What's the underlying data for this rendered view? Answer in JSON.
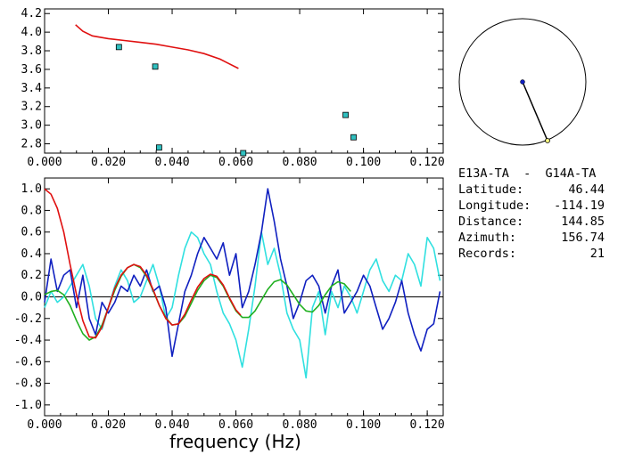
{
  "colors": {
    "red": "#e01010",
    "blue": "#1020c0",
    "cyan": "#30e0e0",
    "green": "#20b020",
    "marker_fill": "#30c0c0",
    "axis": "#000000"
  },
  "info": {
    "station_pair": "E13A-TA  -  G14A-TA",
    "rows": [
      {
        "label": "Latitude:",
        "value": "46.44"
      },
      {
        "label": "Longitude:",
        "value": "-114.19"
      },
      {
        "label": "Distance:",
        "value": "144.85"
      },
      {
        "label": "Azimuth:",
        "value": "156.74"
      },
      {
        "label": "Records:",
        "value": "21"
      }
    ]
  },
  "chart_data": [
    {
      "type": "scatter",
      "xlim": [
        0.0,
        0.125
      ],
      "ylim": [
        2.7,
        4.25
      ],
      "x_ticks": [
        "0.000",
        "0.020",
        "0.040",
        "0.060",
        "0.080",
        "0.100",
        "0.120"
      ],
      "y_ticks": [
        "2.8",
        "3.0",
        "3.2",
        "3.4",
        "3.6",
        "3.8",
        "4.0",
        "4.2"
      ],
      "x_tick_values": [
        0.0,
        0.02,
        0.04,
        0.06,
        0.08,
        0.1,
        0.12
      ],
      "y_tick_values": [
        2.8,
        3.0,
        3.2,
        3.4,
        3.6,
        3.8,
        4.0,
        4.2
      ],
      "points": [
        {
          "x": 0.0233,
          "y": 3.84
        },
        {
          "x": 0.0347,
          "y": 3.63
        },
        {
          "x": 0.0359,
          "y": 2.76
        },
        {
          "x": 0.0623,
          "y": 2.7
        },
        {
          "x": 0.0944,
          "y": 3.11
        },
        {
          "x": 0.0969,
          "y": 2.87
        }
      ],
      "curve": {
        "x": [
          0.0097,
          0.012,
          0.015,
          0.02,
          0.025,
          0.03,
          0.035,
          0.04,
          0.045,
          0.05,
          0.055,
          0.0608
        ],
        "y": [
          4.08,
          4.01,
          3.96,
          3.93,
          3.91,
          3.89,
          3.87,
          3.84,
          3.81,
          3.77,
          3.71,
          3.61
        ]
      }
    },
    {
      "type": "line",
      "xlim": [
        0.0,
        0.125
      ],
      "ylim": [
        -1.1,
        1.1
      ],
      "x_ticks": [
        "0.000",
        "0.020",
        "0.040",
        "0.060",
        "0.080",
        "0.100",
        "0.120"
      ],
      "y_ticks": [
        "-1.0",
        "-0.8",
        "-0.6",
        "-0.4",
        "-0.2",
        "0.0",
        "0.2",
        "0.4",
        "0.6",
        "0.8",
        "1.0"
      ],
      "x_tick_values": [
        0.0,
        0.02,
        0.04,
        0.06,
        0.08,
        0.1,
        0.12
      ],
      "y_tick_values": [
        -1.0,
        -0.8,
        -0.6,
        -0.4,
        -0.2,
        0.0,
        0.2,
        0.4,
        0.6,
        0.8,
        1.0
      ],
      "xlabel": "frequency (Hz)",
      "series": [
        {
          "color": "#e01010",
          "x": [
            0.0,
            0.002,
            0.004,
            0.006,
            0.008,
            0.01,
            0.012,
            0.014,
            0.016,
            0.018,
            0.02,
            0.022,
            0.024,
            0.026,
            0.028,
            0.03,
            0.032,
            0.034,
            0.036,
            0.038,
            0.04,
            0.042,
            0.044,
            0.046,
            0.048,
            0.05,
            0.052,
            0.054,
            0.056,
            0.058,
            0.06,
            0.0615
          ],
          "y": [
            1.0,
            0.95,
            0.82,
            0.6,
            0.3,
            0.02,
            -0.22,
            -0.37,
            -0.38,
            -0.28,
            -0.1,
            0.08,
            0.2,
            0.27,
            0.3,
            0.28,
            0.2,
            0.07,
            -0.08,
            -0.2,
            -0.26,
            -0.25,
            -0.16,
            -0.03,
            0.09,
            0.17,
            0.21,
            0.19,
            0.11,
            -0.01,
            -0.12,
            -0.17
          ]
        },
        {
          "color": "#20b020",
          "x": [
            0.0,
            0.002,
            0.004,
            0.006,
            0.008,
            0.01,
            0.012,
            0.014,
            0.016,
            0.018,
            0.02,
            0.022,
            0.024,
            0.026,
            0.028,
            0.03,
            0.032,
            0.034,
            0.036,
            0.038,
            0.04,
            0.042,
            0.044,
            0.046,
            0.048,
            0.05,
            0.052,
            0.054,
            0.056,
            0.058,
            0.06,
            0.062,
            0.064,
            0.066,
            0.068,
            0.07,
            0.072,
            0.074,
            0.076,
            0.078,
            0.08,
            0.082,
            0.084,
            0.086,
            0.088,
            0.09,
            0.092,
            0.094,
            0.096
          ],
          "y": [
            0.02,
            0.05,
            0.06,
            0.02,
            -0.08,
            -0.22,
            -0.34,
            -0.4,
            -0.37,
            -0.26,
            -0.1,
            0.06,
            0.19,
            0.27,
            0.3,
            0.27,
            0.19,
            0.06,
            -0.08,
            -0.19,
            -0.26,
            -0.25,
            -0.18,
            -0.06,
            0.06,
            0.15,
            0.2,
            0.18,
            0.1,
            -0.02,
            -0.13,
            -0.19,
            -0.19,
            -0.13,
            -0.03,
            0.07,
            0.14,
            0.16,
            0.11,
            0.02,
            -0.07,
            -0.13,
            -0.14,
            -0.08,
            0.02,
            0.1,
            0.14,
            0.12,
            0.05
          ]
        },
        {
          "color": "#1020c0",
          "x": [
            0.0,
            0.002,
            0.004,
            0.006,
            0.008,
            0.01,
            0.012,
            0.014,
            0.016,
            0.018,
            0.02,
            0.022,
            0.024,
            0.026,
            0.028,
            0.03,
            0.032,
            0.034,
            0.036,
            0.038,
            0.04,
            0.042,
            0.044,
            0.046,
            0.048,
            0.05,
            0.052,
            0.054,
            0.056,
            0.058,
            0.06,
            0.062,
            0.064,
            0.066,
            0.068,
            0.07,
            0.072,
            0.074,
            0.076,
            0.078,
            0.08,
            0.082,
            0.084,
            0.086,
            0.088,
            0.09,
            0.092,
            0.094,
            0.096,
            0.098,
            0.1,
            0.102,
            0.104,
            0.106,
            0.108,
            0.11,
            0.112,
            0.114,
            0.116,
            0.118,
            0.12,
            0.122,
            0.124
          ],
          "y": [
            -0.05,
            0.35,
            0.05,
            0.2,
            0.25,
            -0.1,
            0.2,
            -0.2,
            -0.35,
            -0.05,
            -0.15,
            -0.05,
            0.1,
            0.05,
            0.2,
            0.1,
            0.25,
            0.05,
            0.1,
            -0.1,
            -0.55,
            -0.25,
            0.05,
            0.2,
            0.4,
            0.55,
            0.45,
            0.35,
            0.5,
            0.2,
            0.4,
            -0.1,
            0.05,
            0.3,
            0.6,
            1.0,
            0.7,
            0.35,
            0.1,
            -0.2,
            -0.05,
            0.15,
            0.2,
            0.1,
            -0.15,
            0.1,
            0.25,
            -0.15,
            -0.05,
            0.05,
            0.2,
            0.1,
            -0.1,
            -0.3,
            -0.2,
            -0.05,
            0.15,
            -0.15,
            -0.35,
            -0.5,
            -0.3,
            -0.25,
            0.05
          ]
        },
        {
          "color": "#30e0e0",
          "x": [
            0.0,
            0.002,
            0.004,
            0.006,
            0.008,
            0.01,
            0.012,
            0.014,
            0.016,
            0.018,
            0.02,
            0.022,
            0.024,
            0.026,
            0.028,
            0.03,
            0.032,
            0.034,
            0.036,
            0.038,
            0.04,
            0.042,
            0.044,
            0.046,
            0.048,
            0.05,
            0.052,
            0.054,
            0.056,
            0.058,
            0.06,
            0.062,
            0.064,
            0.066,
            0.068,
            0.07,
            0.072,
            0.074,
            0.076,
            0.078,
            0.08,
            0.082,
            0.084,
            0.086,
            0.088,
            0.09,
            0.092,
            0.094,
            0.096,
            0.098,
            0.1,
            0.102,
            0.104,
            0.106,
            0.108,
            0.11,
            0.112,
            0.114,
            0.116,
            0.118,
            0.12,
            0.122,
            0.124
          ],
          "y": [
            -0.1,
            0.05,
            -0.05,
            0.0,
            0.1,
            0.2,
            0.3,
            0.1,
            -0.2,
            -0.3,
            -0.1,
            0.1,
            0.25,
            0.15,
            -0.05,
            0.0,
            0.15,
            0.3,
            0.1,
            -0.2,
            -0.1,
            0.2,
            0.45,
            0.6,
            0.55,
            0.4,
            0.3,
            0.05,
            -0.15,
            -0.25,
            -0.4,
            -0.65,
            -0.3,
            0.1,
            0.6,
            0.3,
            0.45,
            0.2,
            -0.15,
            -0.3,
            -0.4,
            -0.75,
            -0.1,
            0.05,
            -0.35,
            0.05,
            -0.1,
            0.1,
            0.0,
            -0.15,
            0.05,
            0.25,
            0.35,
            0.15,
            0.05,
            0.2,
            0.15,
            0.4,
            0.3,
            0.1,
            0.55,
            0.45,
            0.15
          ]
        }
      ]
    }
  ],
  "map": {
    "station_point": {
      "lat": 46.44,
      "lon": -114.19
    },
    "azimuth_deg": 156.74
  }
}
